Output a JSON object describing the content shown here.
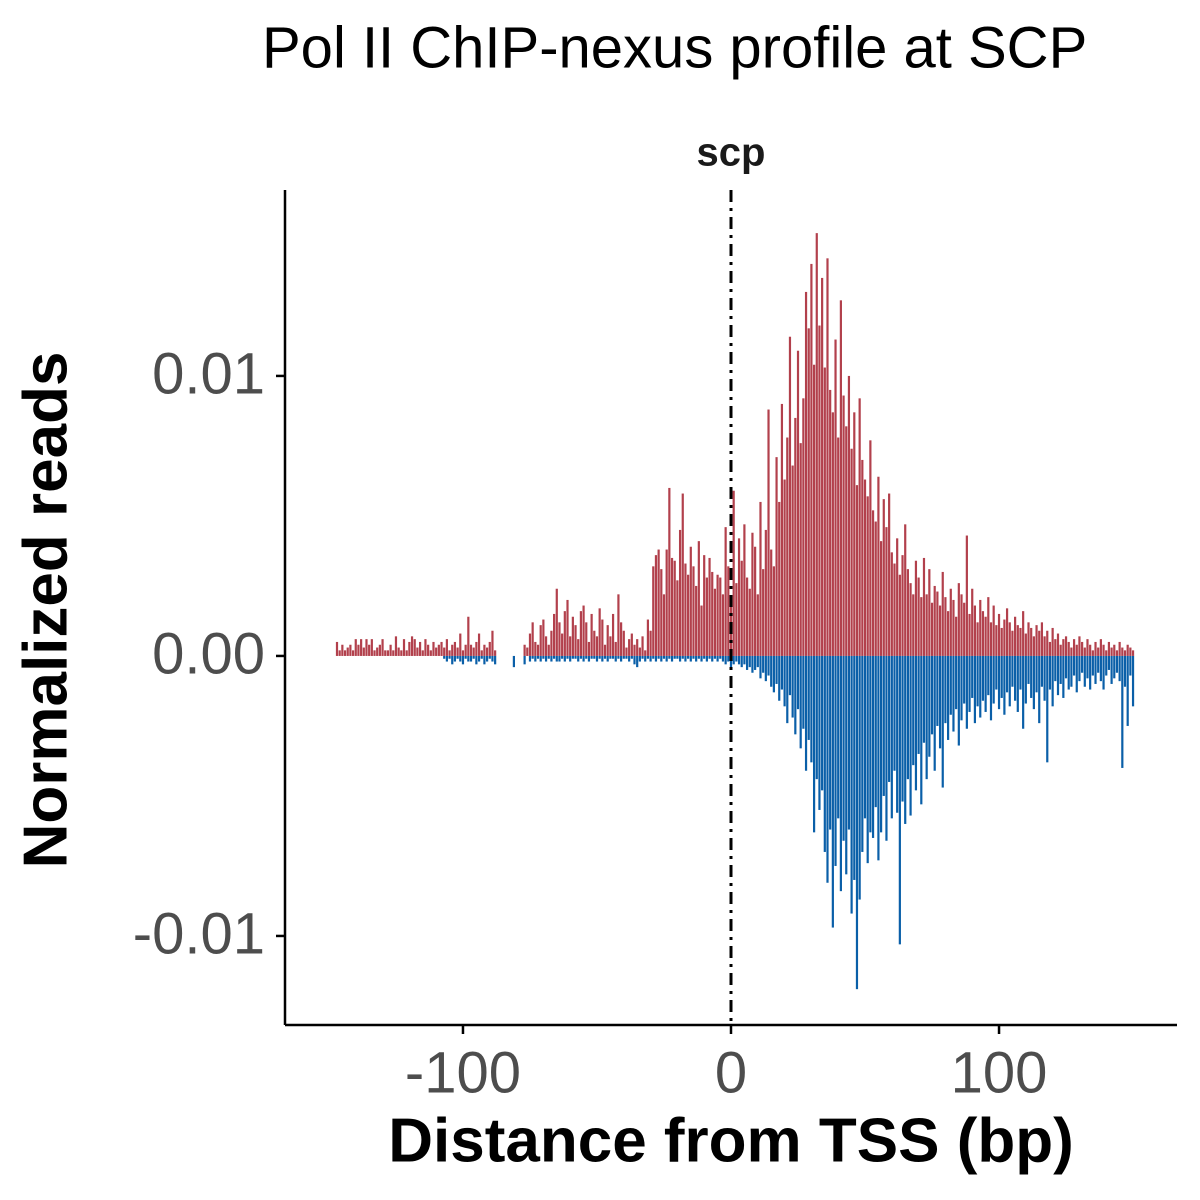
{
  "chart_data": {
    "type": "bar",
    "title": "Pol II ChIP-nexus profile at SCP",
    "x_label": "Distance from TSS (bp)",
    "y_label": "Normalized reads",
    "annotation": {
      "x": 0,
      "label": "scp"
    },
    "xlim": [
      -166.4,
      166.4
    ],
    "xticks": [
      -100,
      0,
      100
    ],
    "ylim": [
      -0.01318,
      0.01664
    ],
    "yticks": [
      -0.01,
      {
        "value": 0,
        "label": "0.00"
      },
      0.01
    ],
    "x": [
      -147,
      -146,
      -145,
      -144,
      -143,
      -142,
      -141,
      -140,
      -139,
      -138,
      -137,
      -136,
      -135,
      -134,
      -133,
      -132,
      -131,
      -130,
      -129,
      -128,
      -127,
      -126,
      -125,
      -124,
      -123,
      -122,
      -121,
      -120,
      -119,
      -118,
      -117,
      -116,
      -115,
      -114,
      -113,
      -112,
      -111,
      -110,
      -109,
      -108,
      -107,
      -106,
      -105,
      -104,
      -103,
      -102,
      -101,
      -100,
      -99,
      -98,
      -97,
      -96,
      -95,
      -94,
      -93,
      -92,
      -91,
      -90,
      -89,
      -88,
      -87,
      -86,
      -85,
      -84,
      -83,
      -82,
      -81,
      -80,
      -79,
      -78,
      -77,
      -76,
      -75,
      -74,
      -73,
      -72,
      -71,
      -70,
      -69,
      -68,
      -67,
      -66,
      -65,
      -64,
      -63,
      -62,
      -61,
      -60,
      -59,
      -58,
      -57,
      -56,
      -55,
      -54,
      -53,
      -52,
      -51,
      -50,
      -49,
      -48,
      -47,
      -46,
      -45,
      -44,
      -43,
      -42,
      -41,
      -40,
      -39,
      -38,
      -37,
      -36,
      -35,
      -34,
      -33,
      -32,
      -31,
      -30,
      -29,
      -28,
      -27,
      -26,
      -25,
      -24,
      -23,
      -22,
      -21,
      -20,
      -19,
      -18,
      -17,
      -16,
      -15,
      -14,
      -13,
      -12,
      -11,
      -10,
      -9,
      -8,
      -7,
      -6,
      -5,
      -4,
      -3,
      -2,
      -1,
      0,
      1,
      2,
      3,
      4,
      5,
      6,
      7,
      8,
      9,
      10,
      11,
      12,
      13,
      14,
      15,
      16,
      17,
      18,
      19,
      20,
      21,
      22,
      23,
      24,
      25,
      26,
      27,
      28,
      29,
      30,
      31,
      32,
      33,
      34,
      35,
      36,
      37,
      38,
      39,
      40,
      41,
      42,
      43,
      44,
      45,
      46,
      47,
      48,
      49,
      50,
      51,
      52,
      53,
      54,
      55,
      56,
      57,
      58,
      59,
      60,
      61,
      62,
      63,
      64,
      65,
      66,
      67,
      68,
      69,
      70,
      71,
      72,
      73,
      74,
      75,
      76,
      77,
      78,
      79,
      80,
      81,
      82,
      83,
      84,
      85,
      86,
      87,
      88,
      89,
      90,
      91,
      92,
      93,
      94,
      95,
      96,
      97,
      98,
      99,
      100,
      101,
      102,
      103,
      104,
      105,
      106,
      107,
      108,
      109,
      110,
      111,
      112,
      113,
      114,
      115,
      116,
      117,
      118,
      119,
      120,
      121,
      122,
      123,
      124,
      125,
      126,
      127,
      128,
      129,
      130,
      131,
      132,
      133,
      134,
      135,
      136,
      137,
      138,
      139,
      140,
      141,
      142,
      143,
      144,
      145,
      146,
      147,
      148,
      149,
      150
    ],
    "series": [
      {
        "color": "#b2404c",
        "values": [
          0.0005,
          0.0002,
          0.0004,
          0.0002,
          0.0003,
          0.0004,
          0.0002,
          0.0006,
          0.0004,
          0.0006,
          0.0003,
          0.0006,
          0.0004,
          0.0006,
          0.0002,
          0.0003,
          0.0004,
          0.0006,
          0.0002,
          0.0002,
          0.0004,
          0.0002,
          0.0007,
          0.0003,
          0.0002,
          0.0006,
          0.0002,
          0.0005,
          0.0007,
          0.0006,
          0.0003,
          0.0005,
          0.0002,
          0.0006,
          0.0004,
          0.0002,
          0.0005,
          0.0003,
          0.0004,
          0.0005,
          0.0003,
          0.0006,
          0.0002,
          0.0004,
          0.0005,
          0.0003,
          0.0008,
          0.0002,
          0.0004,
          0.0014,
          0.0004,
          0.0003,
          0.0005,
          0.0008,
          0.0002,
          0.0004,
          0.0003,
          0.0005,
          0.0009,
          0.0002,
          null,
          null,
          null,
          null,
          null,
          null,
          null,
          null,
          null,
          null,
          0.0004,
          0.0003,
          0.0008,
          0.0012,
          0.0005,
          0.0004,
          0.0011,
          0.0013,
          0.0007,
          0.0004,
          0.0009,
          0.0015,
          0.0024,
          0.0012,
          0.0008,
          0.0016,
          0.002,
          0.0007,
          0.0014,
          0.0011,
          0.0006,
          0.0016,
          0.0018,
          0.0012,
          0.0005,
          0.0015,
          0.0009,
          0.0007,
          0.0017,
          0.0013,
          0.0004,
          0.0011,
          0.0007,
          0.0015,
          0.0005,
          0.0022,
          0.0012,
          0.0009,
          0.0003,
          0.0006,
          0.0008,
          0.0004,
          0.0006,
          0.0003,
          0.0007,
          0.0002,
          0.0013,
          0.0009,
          0.0032,
          0.0036,
          0.0038,
          0.0031,
          0.0022,
          0.0038,
          0.006,
          0.0035,
          0.0034,
          0.0027,
          0.0045,
          0.0058,
          0.0033,
          0.0029,
          0.0039,
          0.0032,
          0.0025,
          0.0041,
          0.0018,
          0.0036,
          0.0028,
          0.0035,
          0.003,
          0.0024,
          0.0029,
          0.0028,
          0.0022,
          0.0046,
          0.0032,
          0.0018,
          0.0059,
          0.0026,
          0.0042,
          0.0034,
          0.0047,
          0.0028,
          0.0024,
          0.0044,
          0.0039,
          0.0022,
          0.0055,
          0.0031,
          0.0045,
          0.0088,
          0.0038,
          0.0032,
          0.0071,
          0.0055,
          0.009,
          0.0063,
          0.0078,
          0.0114,
          0.0068,
          0.0085,
          0.0109,
          0.0076,
          0.0092,
          0.013,
          0.0117,
          0.014,
          0.0104,
          0.0151,
          0.0118,
          0.0135,
          0.0103,
          0.0142,
          0.0095,
          0.0087,
          0.0113,
          0.0078,
          0.0127,
          0.0093,
          0.0082,
          0.01,
          0.0074,
          0.0087,
          0.0061,
          0.0092,
          0.007,
          0.0063,
          0.0057,
          0.0077,
          0.0052,
          0.0048,
          0.0064,
          0.0041,
          0.0056,
          0.0046,
          0.0058,
          0.0037,
          0.0033,
          0.0042,
          0.0029,
          0.0036,
          0.0047,
          0.0031,
          0.0026,
          0.0022,
          0.0034,
          0.0028,
          0.0021,
          0.0035,
          0.0022,
          0.0031,
          0.0019,
          0.0025,
          0.0023,
          0.0018,
          0.003,
          0.0021,
          0.0016,
          0.0024,
          0.002,
          0.0014,
          0.0026,
          0.0022,
          0.0019,
          0.0043,
          0.0015,
          0.0024,
          0.0018,
          0.0012,
          0.002,
          0.0016,
          0.0014,
          0.0021,
          0.0012,
          0.0018,
          0.0011,
          0.0015,
          0.001,
          0.0013,
          0.0017,
          0.0012,
          0.0009,
          0.0014,
          0.0011,
          0.001,
          0.0016,
          0.0008,
          0.0012,
          0.001,
          0.0007,
          0.0011,
          0.0009,
          0.0012,
          0.0007,
          0.0009,
          0.0005,
          0.001,
          0.0006,
          0.0008,
          0.0004,
          0.0006,
          0.0007,
          0.0005,
          0.0003,
          0.0006,
          0.0004,
          0.0007,
          0.0005,
          0.0003,
          0.0006,
          0.0004,
          0.0002,
          0.0005,
          0.0003,
          0.0006,
          0.0004,
          0.0002,
          0.0005,
          0.0003,
          0.0004,
          0.0002,
          0.0005,
          0.0003,
          0.0002,
          0.0004,
          0.0003,
          0.0002
        ]
      },
      {
        "color": "#0a5fa8",
        "values": [
          null,
          null,
          null,
          null,
          null,
          null,
          null,
          null,
          null,
          null,
          null,
          null,
          null,
          null,
          null,
          null,
          null,
          null,
          null,
          null,
          null,
          null,
          null,
          null,
          null,
          null,
          null,
          null,
          null,
          null,
          null,
          null,
          null,
          null,
          null,
          null,
          null,
          null,
          null,
          null,
          -0.0001,
          -0.0002,
          -0.0001,
          -0.0003,
          -0.0002,
          -0.0001,
          -0.0002,
          -0.0003,
          -0.0001,
          -0.0002,
          -0.0002,
          -0.0001,
          -0.0003,
          -0.0002,
          -0.0001,
          -0.0003,
          -0.0002,
          -0.0001,
          -0.0002,
          -0.0003,
          null,
          null,
          null,
          null,
          null,
          null,
          -0.0004,
          null,
          null,
          null,
          -0.0003,
          null,
          -0.0002,
          -0.0001,
          -0.0002,
          -0.0001,
          -0.0002,
          -0.0001,
          -0.0002,
          -0.0001,
          -0.0002,
          -0.0001,
          -0.0002,
          -0.0002,
          -0.0001,
          -0.0002,
          -0.0001,
          -0.0002,
          -0.0001,
          -0.0001,
          -0.0002,
          -0.0001,
          -0.0002,
          -0.0001,
          -0.0002,
          -0.0001,
          -0.0001,
          -0.0002,
          -0.0001,
          -0.0002,
          -0.0001,
          -0.0002,
          -0.0001,
          -0.0001,
          -0.0002,
          -0.0001,
          -0.0002,
          -0.0001,
          -0.0001,
          -0.0002,
          -0.0001,
          -0.0003,
          -0.0004,
          -0.0002,
          -0.0001,
          -0.0002,
          -0.0001,
          -0.0002,
          -0.0001,
          -0.0002,
          -0.0001,
          -0.0002,
          -0.0001,
          -0.0002,
          -0.0001,
          -0.0002,
          -0.0001,
          -0.0001,
          -0.0002,
          -0.0001,
          -0.0002,
          -0.0001,
          -0.0002,
          -0.0001,
          -0.0002,
          -0.0001,
          -0.0002,
          -0.0001,
          -0.0002,
          -0.0001,
          -0.0002,
          -0.0001,
          -0.0002,
          -0.0001,
          -0.0002,
          -0.0003,
          -0.0002,
          -0.0004,
          -0.0003,
          -0.0002,
          -0.0003,
          -0.0004,
          -0.0003,
          -0.0005,
          -0.0004,
          -0.0006,
          -0.0005,
          -0.0004,
          -0.0008,
          -0.0006,
          -0.0009,
          -0.0007,
          -0.0011,
          -0.0013,
          -0.001,
          -0.0016,
          -0.0012,
          -0.0018,
          -0.0024,
          -0.0014,
          -0.0022,
          -0.0028,
          -0.0019,
          -0.0033,
          -0.0026,
          -0.0041,
          -0.003,
          -0.0038,
          -0.0063,
          -0.0044,
          -0.0055,
          -0.0048,
          -0.007,
          -0.0081,
          -0.0062,
          -0.0097,
          -0.0075,
          -0.0058,
          -0.0084,
          -0.0066,
          -0.0078,
          -0.0062,
          -0.0092,
          -0.008,
          -0.0119,
          -0.0087,
          -0.007,
          -0.0058,
          -0.0074,
          -0.0063,
          -0.0065,
          -0.0054,
          -0.0073,
          -0.0063,
          -0.005,
          -0.0066,
          -0.0045,
          -0.0058,
          -0.0041,
          -0.0056,
          -0.0103,
          -0.0052,
          -0.006,
          -0.0044,
          -0.0057,
          -0.0039,
          -0.0048,
          -0.0035,
          -0.0053,
          -0.0031,
          -0.0044,
          -0.0036,
          -0.0028,
          -0.0041,
          -0.0025,
          -0.0033,
          -0.0047,
          -0.0024,
          -0.003,
          -0.0021,
          -0.0027,
          -0.0019,
          -0.0032,
          -0.0023,
          -0.0017,
          -0.0026,
          -0.002,
          -0.0015,
          -0.0024,
          -0.0018,
          -0.0022,
          -0.0016,
          -0.002,
          -0.0014,
          -0.0023,
          -0.0017,
          -0.0012,
          -0.0019,
          -0.0015,
          -0.0021,
          -0.0013,
          -0.0018,
          -0.0011,
          -0.0016,
          -0.002,
          -0.0012,
          -0.0026,
          -0.0017,
          -0.001,
          -0.0015,
          -0.0019,
          -0.0013,
          -0.0024,
          -0.0011,
          -0.0016,
          -0.0038,
          -0.0012,
          -0.0018,
          -0.0009,
          -0.0014,
          -0.001,
          -0.0015,
          -0.0008,
          -0.0012,
          -0.0011,
          -0.0007,
          -0.0013,
          -0.0009,
          -0.0006,
          -0.0011,
          -0.0008,
          -0.0012,
          -0.0007,
          -0.001,
          -0.0006,
          -0.0009,
          -0.0012,
          -0.0007,
          -0.0005,
          -0.001,
          -0.0008,
          -0.0006,
          -0.0009,
          -0.004,
          -0.0011,
          -0.0025,
          -0.0007,
          -0.0018
        ]
      }
    ]
  }
}
